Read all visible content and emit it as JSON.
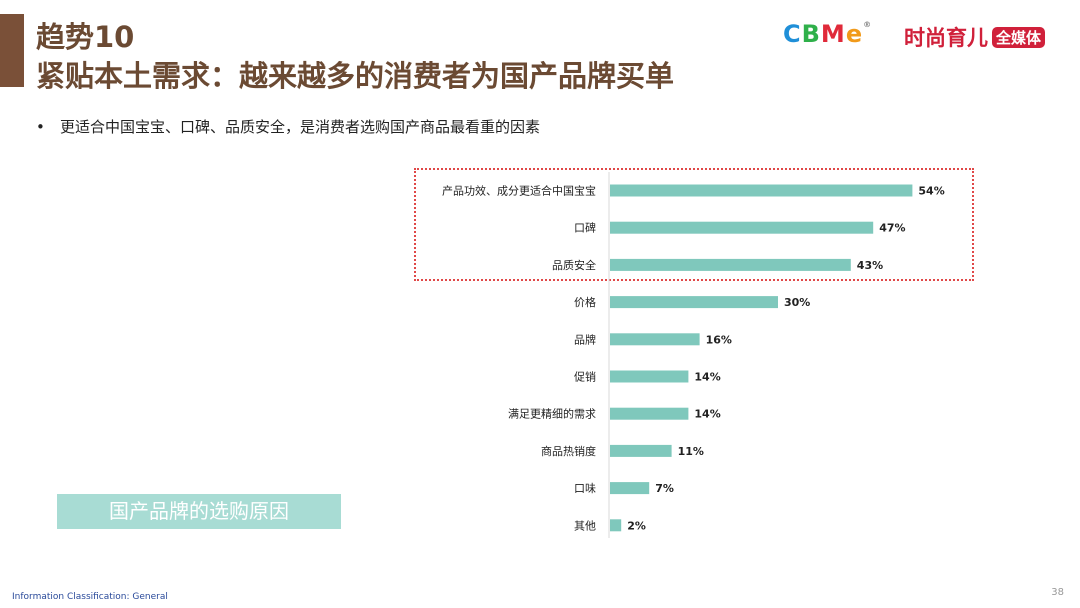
{
  "header": {
    "title_line1": "趋势10",
    "title_line2": "紧贴本土需求：越来越多的消费者为国产品牌买单",
    "accent_color": "#7a5038"
  },
  "logos": {
    "cbme_letters": [
      {
        "char": "C",
        "color": "#1f8fd8"
      },
      {
        "char": "B",
        "color": "#2fb04a"
      },
      {
        "char": "M",
        "color": "#e02a3a"
      },
      {
        "char": "e",
        "color": "#f19a1a"
      }
    ],
    "cbme_mark": "®",
    "brand_text": "时尚育儿",
    "brand_badge": "全媒体",
    "brand_color": "#d0203a"
  },
  "bullet": {
    "symbol": "•",
    "text": "更适合中国宝宝、口碑、品质安全，是消费者选购国产商品最看重的因素"
  },
  "chart_data": {
    "type": "bar",
    "orientation": "horizontal",
    "categories": [
      "产品功效、成分更适合中国宝宝",
      "口碑",
      "品质安全",
      "价格",
      "品牌",
      "促销",
      "满足更精细的需求",
      "商品热销度",
      "口味",
      "其他"
    ],
    "values": [
      54,
      47,
      43,
      30,
      16,
      14,
      14,
      11,
      7,
      2
    ],
    "value_labels": [
      "54%",
      "47%",
      "43%",
      "30%",
      "16%",
      "14%",
      "14%",
      "11%",
      "7%",
      "2%"
    ],
    "legend": "国产品牌的选购原因",
    "xlim": [
      0,
      100
    ],
    "grid": false,
    "bar_color": "#7fc8bc",
    "highlighted_categories": [
      "产品功效、成分更适合中国宝宝",
      "口碑",
      "品质安全"
    ],
    "highlight_color": "#e04848"
  },
  "footer": {
    "classification": "Information Classification: General",
    "page_number": "38"
  }
}
